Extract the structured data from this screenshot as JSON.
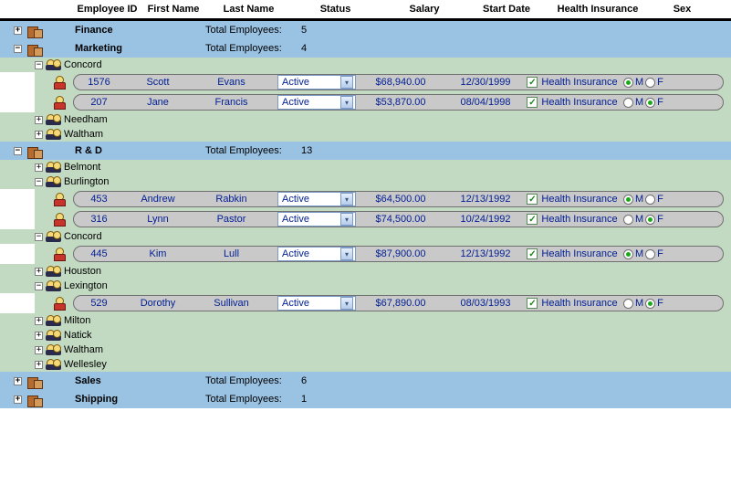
{
  "header": {
    "emp_id": "Employee ID",
    "first_name": "First Name",
    "last_name": "Last Name",
    "status": "Status",
    "salary": "Salary",
    "start_date": "Start Date",
    "health": "Health Insurance",
    "sex": "Sex"
  },
  "labels": {
    "total_employees": "Total Employees:",
    "health_text": "Health Insurance",
    "male": "M",
    "female": "F"
  },
  "status_options": [
    "Active"
  ],
  "colors": {
    "dept_bg": "#9ac2e3",
    "city_bg": "#c2d9c2",
    "link": "#001e94",
    "pill_bg": "#c9c9c9",
    "pill_border": "#707070"
  },
  "departments": [
    {
      "name": "Finance",
      "expanded": false,
      "total": 5,
      "cities": []
    },
    {
      "name": "Marketing",
      "expanded": true,
      "total": 4,
      "cities": [
        {
          "name": "Concord",
          "expanded": true,
          "employees": [
            {
              "id": 1576,
              "first": "Scott",
              "last": "Evans",
              "status": "Active",
              "salary": "$68,940.00",
              "start": "12/30/1999",
              "health": true,
              "sex": "M"
            },
            {
              "id": 207,
              "first": "Jane",
              "last": "Francis",
              "status": "Active",
              "salary": "$53,870.00",
              "start": "08/04/1998",
              "health": true,
              "sex": "F"
            }
          ]
        },
        {
          "name": "Needham",
          "expanded": false,
          "employees": []
        },
        {
          "name": "Waltham",
          "expanded": false,
          "employees": []
        }
      ]
    },
    {
      "name": "R & D",
      "expanded": true,
      "total": 13,
      "cities": [
        {
          "name": "Belmont",
          "expanded": false,
          "employees": []
        },
        {
          "name": "Burlington",
          "expanded": true,
          "employees": [
            {
              "id": 453,
              "first": "Andrew",
              "last": "Rabkin",
              "status": "Active",
              "salary": "$64,500.00",
              "start": "12/13/1992",
              "health": true,
              "sex": "M"
            },
            {
              "id": 316,
              "first": "Lynn",
              "last": "Pastor",
              "status": "Active",
              "salary": "$74,500.00",
              "start": "10/24/1992",
              "health": true,
              "sex": "F"
            }
          ]
        },
        {
          "name": "Concord",
          "expanded": true,
          "employees": [
            {
              "id": 445,
              "first": "Kim",
              "last": "Lull",
              "status": "Active",
              "salary": "$87,900.00",
              "start": "12/13/1992",
              "health": true,
              "sex": "M"
            }
          ]
        },
        {
          "name": "Houston",
          "expanded": false,
          "employees": []
        },
        {
          "name": "Lexington",
          "expanded": true,
          "employees": [
            {
              "id": 529,
              "first": "Dorothy",
              "last": "Sullivan",
              "status": "Active",
              "salary": "$67,890.00",
              "start": "08/03/1993",
              "health": true,
              "sex": "F"
            }
          ]
        },
        {
          "name": "Milton",
          "expanded": false,
          "employees": []
        },
        {
          "name": "Natick",
          "expanded": false,
          "employees": []
        },
        {
          "name": "Waltham",
          "expanded": false,
          "employees": []
        },
        {
          "name": "Wellesley",
          "expanded": false,
          "employees": []
        }
      ]
    },
    {
      "name": "Sales",
      "expanded": false,
      "total": 6,
      "cities": []
    },
    {
      "name": "Shipping",
      "expanded": false,
      "total": 1,
      "cities": []
    }
  ]
}
